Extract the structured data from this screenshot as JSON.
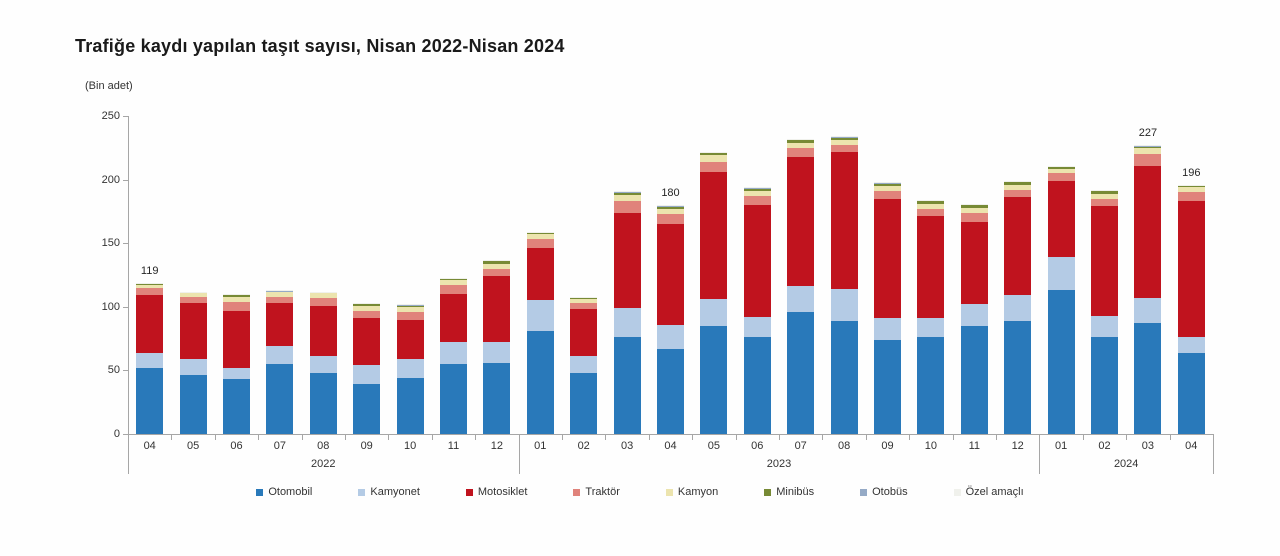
{
  "title": "Trafiğe kaydı yapılan taşıt sayısı, Nisan 2022-Nisan 2024",
  "unit_label": "(Bin adet)",
  "colors": {
    "background": "#ffffff",
    "axis": "#a6a6a6",
    "tick_text": "#333333",
    "title_text": "#1a1a1a",
    "total_label_text": "#262626"
  },
  "chart_data": {
    "type": "bar",
    "stacked": true,
    "title": "Trafiğe kaydı yapılan taşıt sayısı, Nisan 2022-Nisan 2024",
    "ylabel": "(Bin adet)",
    "ylim": [
      0,
      250
    ],
    "yticks": [
      "0",
      "50",
      "100",
      "150",
      "200",
      "250"
    ],
    "grid": false,
    "legend_position": "bottom",
    "categories": [
      "04",
      "05",
      "06",
      "07",
      "08",
      "09",
      "10",
      "11",
      "12",
      "01",
      "02",
      "03",
      "04",
      "05",
      "06",
      "07",
      "08",
      "09",
      "10",
      "11",
      "12",
      "01",
      "02",
      "03",
      "04"
    ],
    "year_groups": [
      {
        "label": "2022",
        "count": 9
      },
      {
        "label": "2023",
        "count": 12
      },
      {
        "label": "2024",
        "count": 4
      }
    ],
    "series": [
      {
        "name": "Otomobil",
        "color": "#2979ba",
        "values": [
          52,
          46,
          43,
          55,
          48,
          39,
          44,
          55,
          56,
          81,
          48,
          76,
          67,
          85,
          76,
          96,
          89,
          74,
          76,
          85,
          89,
          113,
          76,
          87,
          64
        ]
      },
      {
        "name": "Kamyonet",
        "color": "#b4cbe5",
        "values": [
          12,
          13,
          9,
          14,
          13,
          15,
          15,
          17,
          16,
          24,
          13,
          23,
          19,
          21,
          16,
          20,
          25,
          17,
          15,
          17,
          20,
          26,
          17,
          20,
          12
        ]
      },
      {
        "name": "Motosiklet",
        "color": "#c0131e",
        "values": [
          45,
          44,
          45,
          34,
          40,
          37,
          31,
          38,
          52,
          41,
          37,
          75,
          79,
          100,
          88,
          102,
          108,
          94,
          80,
          65,
          77,
          60,
          86,
          104,
          107
        ]
      },
      {
        "name": "Traktör",
        "color": "#e0837b",
        "values": [
          6,
          5,
          7,
          5,
          6,
          6,
          6,
          7,
          6,
          7,
          5,
          9,
          8,
          8,
          7,
          7,
          5,
          6,
          6,
          7,
          6,
          6,
          6,
          9,
          7
        ]
      },
      {
        "name": "Kamyon",
        "color": "#ece4ae",
        "values": [
          2.5,
          2.5,
          4,
          3.5,
          3.5,
          4,
          4,
          4,
          4,
          4,
          3,
          5,
          4,
          5,
          4,
          4,
          4,
          4,
          4,
          4,
          4,
          3,
          4,
          4.5,
          4
        ]
      },
      {
        "name": "Minibüs",
        "color": "#778a35",
        "values": [
          1,
          1,
          1.3,
          1,
          1,
          1.4,
          1.4,
          1.4,
          2,
          1.4,
          1.4,
          2,
          2,
          2,
          2,
          2,
          2,
          2,
          2,
          2,
          2,
          2,
          2,
          2,
          1.4
        ]
      },
      {
        "name": "Otobüs",
        "color": "#95aac6",
        "values": [
          0.3,
          0.3,
          0.4,
          0.3,
          0.3,
          0.4,
          0.4,
          0.4,
          0.6,
          0.4,
          0.4,
          0.6,
          0.6,
          0.6,
          0.6,
          0.6,
          0.6,
          0.6,
          0.6,
          0.6,
          0.6,
          0.6,
          0.6,
          0.3,
          0.4
        ]
      },
      {
        "name": "Özel amaçlı",
        "color": "#f0f1ec",
        "values": [
          0.2,
          0.2,
          0.3,
          0.2,
          0.2,
          0.2,
          0.2,
          0.2,
          0.4,
          0.2,
          0.2,
          0.4,
          0.4,
          0.4,
          0.4,
          0.4,
          0.4,
          0.4,
          0.4,
          0.4,
          0.4,
          0.4,
          0.4,
          0.2,
          0.2
        ]
      }
    ],
    "annotated_totals": [
      {
        "index": 0,
        "label": "119"
      },
      {
        "index": 12,
        "label": "180"
      },
      {
        "index": 23,
        "label": "227"
      },
      {
        "index": 24,
        "label": "196"
      }
    ]
  }
}
